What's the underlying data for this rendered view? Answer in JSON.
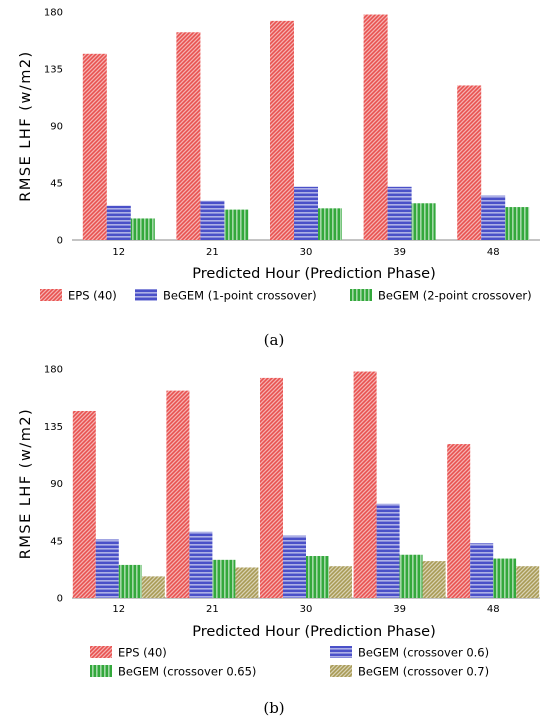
{
  "chart_data": [
    {
      "type": "bar",
      "caption": "(a)",
      "xlabel": "Predicted Hour (Prediction Phase)",
      "ylabel": "RMSE LHF (w/m2)",
      "categories": [
        "12",
        "21",
        "30",
        "39",
        "48"
      ],
      "ylim": [
        0,
        180
      ],
      "yticks": [
        "0",
        "45",
        "90",
        "135",
        "180"
      ],
      "grid": false,
      "legend_position": "bottom",
      "series": [
        {
          "name": "EPS (40)",
          "values": [
            147,
            164,
            173,
            178,
            122
          ],
          "color": "#e8514f",
          "pattern": "diagonal"
        },
        {
          "name": "BeGEM (1-point crossover)",
          "values": [
            27,
            31,
            42,
            42,
            35
          ],
          "color": "#4a50c8",
          "pattern": "horizontal"
        },
        {
          "name": "BeGEM (2-point crossover)",
          "values": [
            17,
            24,
            25,
            29,
            26
          ],
          "color": "#33a83c",
          "pattern": "vertical"
        }
      ]
    },
    {
      "type": "bar",
      "caption": "(b)",
      "xlabel": "Predicted Hour (Prediction Phase)",
      "ylabel": "RMSE LHF (w/m2)",
      "categories": [
        "12",
        "21",
        "30",
        "39",
        "48"
      ],
      "ylim": [
        0,
        180
      ],
      "yticks": [
        "0",
        "45",
        "90",
        "135",
        "180"
      ],
      "grid": false,
      "legend_position": "bottom",
      "series": [
        {
          "name": "EPS (40)",
          "values": [
            147,
            163,
            173,
            178,
            121
          ],
          "color": "#e8514f",
          "pattern": "diagonal"
        },
        {
          "name": "BeGEM (crossover 0.6)",
          "values": [
            46,
            52,
            49,
            74,
            43
          ],
          "color": "#4a50c8",
          "pattern": "horizontal"
        },
        {
          "name": "BeGEM (crossover 0.65)",
          "values": [
            26,
            30,
            33,
            34,
            31
          ],
          "color": "#33a83c",
          "pattern": "vertical"
        },
        {
          "name": "BeGEM (crossover 0.7)",
          "values": [
            17,
            24,
            25,
            29,
            25
          ],
          "color": "#a89a55",
          "pattern": "diagonal"
        }
      ]
    }
  ]
}
